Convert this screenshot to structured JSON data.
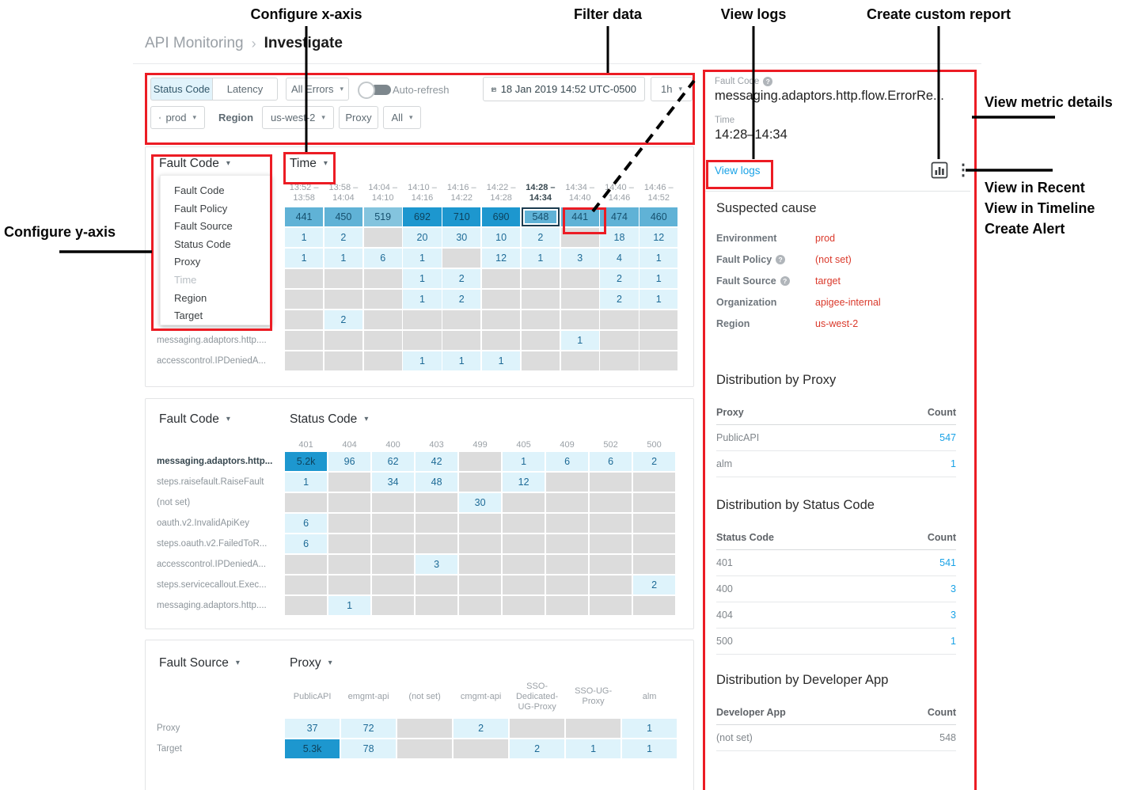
{
  "icons": {
    "chevron_down": "▾",
    "breadcrumb_separator": "›",
    "help": "?",
    "more_vertical": "⋮"
  },
  "annotations": {
    "configure_x_axis": "Configure x-axis",
    "filter_data": "Filter data",
    "view_logs": "View logs",
    "create_custom_report": "Create custom report",
    "view_metric_details": "View metric details",
    "view_in_recent": "View in Recent",
    "view_in_timeline": "View in Timeline",
    "create_alert": "Create Alert",
    "configure_y_axis": "Configure y-axis"
  },
  "breadcrumb": {
    "parent": "API Monitoring",
    "current": "Investigate"
  },
  "toolbar": {
    "tab_status_code": "Status Code",
    "tab_latency": "Latency",
    "errors_dropdown": "All Errors",
    "auto_refresh_label": "Auto-refresh",
    "datetime": "18 Jan 2019 14:52 UTC-0500",
    "interval": "1h",
    "env": "prod",
    "region_label": "Region",
    "region_value": "us-west-2",
    "proxy_label": "Proxy",
    "proxy_value": "All"
  },
  "charts": {
    "hm1": {
      "y_axis": "Fault Code",
      "x_axis": "Time",
      "menu": [
        {
          "label": "Fault Code"
        },
        {
          "label": "Fault Policy"
        },
        {
          "label": "Fault Source"
        },
        {
          "label": "Status Code"
        },
        {
          "label": "Proxy"
        },
        {
          "label": "Time",
          "disabled": true
        },
        {
          "label": "Region"
        },
        {
          "label": "Target"
        }
      ],
      "cols": [
        {
          "lines": [
            "13:52 –",
            "13:58"
          ]
        },
        {
          "lines": [
            "13:58 –",
            "14:04"
          ]
        },
        {
          "lines": [
            "14:04 –",
            "14:10"
          ]
        },
        {
          "lines": [
            "14:10 –",
            "14:16"
          ]
        },
        {
          "lines": [
            "14:16 –",
            "14:22"
          ]
        },
        {
          "lines": [
            "14:22 –",
            "14:28"
          ]
        },
        {
          "lines": [
            "14:28 –",
            "14:34"
          ],
          "bold": true
        },
        {
          "lines": [
            "14:34 –",
            "14:40"
          ]
        },
        {
          "lines": [
            "14:40 –",
            "14:46"
          ]
        },
        {
          "lines": [
            "14:46 –",
            "14:52"
          ]
        }
      ],
      "rows": [
        {
          "label": "",
          "cells": [
            [
              "441",
              "m"
            ],
            [
              "450",
              "m"
            ],
            [
              "519",
              "ml"
            ],
            [
              "692",
              "d"
            ],
            [
              "710",
              "d"
            ],
            [
              "690",
              "d"
            ],
            [
              "548",
              "m",
              "sel"
            ],
            [
              "441",
              "m"
            ],
            [
              "474",
              "m"
            ],
            [
              "460",
              "m"
            ]
          ]
        },
        {
          "label": "",
          "cells": [
            [
              "1",
              "l"
            ],
            [
              "2",
              "l"
            ],
            [],
            [
              "20",
              "l"
            ],
            [
              "30",
              "l"
            ],
            [
              "10",
              "l"
            ],
            [
              "2",
              "l"
            ],
            [],
            [
              "18",
              "l"
            ],
            [
              "12",
              "l"
            ]
          ]
        },
        {
          "label": "",
          "cells": [
            [
              "1",
              "l"
            ],
            [
              "1",
              "l"
            ],
            [
              "6",
              "l"
            ],
            [
              "1",
              "l"
            ],
            [],
            [
              "12",
              "l"
            ],
            [
              "1",
              "l"
            ],
            [
              "3",
              "l"
            ],
            [
              "4",
              "l"
            ],
            [
              "1",
              "l"
            ]
          ]
        },
        {
          "label": "",
          "cells": [
            [],
            [],
            [],
            [
              "1",
              "l"
            ],
            [
              "2",
              "l"
            ],
            [],
            [],
            [],
            [
              "2",
              "l"
            ],
            [
              "1",
              "l"
            ]
          ]
        },
        {
          "label": "",
          "cells": [
            [],
            [],
            [],
            [
              "1",
              "l"
            ],
            [
              "2",
              "l"
            ],
            [],
            [],
            [],
            [
              "2",
              "l"
            ],
            [
              "1",
              "l"
            ]
          ]
        },
        {
          "label": "",
          "cells": [
            [],
            [
              "2",
              "l"
            ],
            [],
            [],
            [],
            [],
            [],
            [],
            [],
            []
          ]
        },
        {
          "label": "messaging.adaptors.http....",
          "cells": [
            [],
            [],
            [],
            [],
            [],
            [],
            [],
            [
              "1",
              "l"
            ],
            [],
            []
          ]
        },
        {
          "label": "accesscontrol.IPDeniedA...",
          "cells": [
            [],
            [],
            [],
            [
              "1",
              "l"
            ],
            [
              "1",
              "l"
            ],
            [
              "1",
              "l"
            ],
            [],
            [],
            [],
            []
          ]
        }
      ]
    },
    "hm2": {
      "y_axis": "Fault Code",
      "x_axis": "Status Code",
      "cols": [
        {
          "lines": [
            "401"
          ]
        },
        {
          "lines": [
            "404"
          ]
        },
        {
          "lines": [
            "400"
          ]
        },
        {
          "lines": [
            "403"
          ]
        },
        {
          "lines": [
            "499"
          ]
        },
        {
          "lines": [
            "405"
          ]
        },
        {
          "lines": [
            "409"
          ]
        },
        {
          "lines": [
            "502"
          ]
        },
        {
          "lines": [
            "500"
          ]
        }
      ],
      "rows": [
        {
          "label": "messaging.adaptors.http...",
          "bold": true,
          "cells": [
            [
              "5.2k",
              "d"
            ],
            [
              "96",
              "l"
            ],
            [
              "62",
              "l"
            ],
            [
              "42",
              "l"
            ],
            [],
            [
              "1",
              "l"
            ],
            [
              "6",
              "l"
            ],
            [
              "6",
              "l"
            ],
            [
              "2",
              "l"
            ]
          ]
        },
        {
          "label": "steps.raisefault.RaiseFault",
          "cells": [
            [
              "1",
              "l"
            ],
            [],
            [
              "34",
              "l"
            ],
            [
              "48",
              "l"
            ],
            [],
            [
              "12",
              "l"
            ],
            [],
            [],
            []
          ]
        },
        {
          "label": "(not set)",
          "cells": [
            [],
            [],
            [],
            [],
            [
              "30",
              "l"
            ],
            [],
            [],
            [],
            []
          ]
        },
        {
          "label": "oauth.v2.InvalidApiKey",
          "cells": [
            [
              "6",
              "l"
            ],
            [],
            [],
            [],
            [],
            [],
            [],
            [],
            []
          ]
        },
        {
          "label": "steps.oauth.v2.FailedToR...",
          "cells": [
            [
              "6",
              "l"
            ],
            [],
            [],
            [],
            [],
            [],
            [],
            [],
            []
          ]
        },
        {
          "label": "accesscontrol.IPDeniedA...",
          "cells": [
            [],
            [],
            [],
            [
              "3",
              "l"
            ],
            [],
            [],
            [],
            [],
            []
          ]
        },
        {
          "label": "steps.servicecallout.Exec...",
          "cells": [
            [],
            [],
            [],
            [],
            [],
            [],
            [],
            [],
            [
              "2",
              "l"
            ]
          ]
        },
        {
          "label": "messaging.adaptors.http....",
          "cells": [
            [],
            [
              "1",
              "l"
            ],
            [],
            [],
            [],
            [],
            [],
            [],
            []
          ]
        }
      ]
    },
    "hm3": {
      "y_axis": "Fault Source",
      "x_axis": "Proxy",
      "cols": [
        {
          "lines": [
            "PublicAPI"
          ]
        },
        {
          "lines": [
            "emgmt-api"
          ]
        },
        {
          "lines": [
            "(not set)"
          ]
        },
        {
          "lines": [
            "cmgmt-api"
          ]
        },
        {
          "lines": [
            "SSO-",
            "Dedicated-",
            "UG-Proxy"
          ]
        },
        {
          "lines": [
            "SSO-UG-",
            "Proxy"
          ]
        },
        {
          "lines": [
            "alm"
          ]
        }
      ],
      "rows": [
        {
          "label": "Proxy",
          "cells": [
            [
              "37",
              "l"
            ],
            [
              "72",
              "l"
            ],
            [],
            [
              "2",
              "l"
            ],
            [],
            [],
            [
              "1",
              "l"
            ]
          ]
        },
        {
          "label": "Target",
          "cells": [
            [
              "5.3k",
              "d"
            ],
            [
              "78",
              "l"
            ],
            [],
            [],
            [
              "2",
              "l"
            ],
            [
              "1",
              "l"
            ],
            [
              "1",
              "l"
            ]
          ]
        }
      ]
    }
  },
  "panel": {
    "fault_code_label": "Fault Code",
    "fault_code_value": "messaging.adaptors.http.flow.ErrorRe...",
    "time_label": "Time",
    "time_value": "14:28–14:34",
    "view_logs": "View logs",
    "suspected_cause": {
      "title": "Suspected cause",
      "rows": [
        {
          "label": "Environment",
          "value": "prod",
          "help": false
        },
        {
          "label": "Fault Policy",
          "value": "(not set)",
          "help": true
        },
        {
          "label": "Fault Source",
          "value": "target",
          "help": true
        },
        {
          "label": "Organization",
          "value": "apigee-internal",
          "help": false
        },
        {
          "label": "Region",
          "value": "us-west-2",
          "help": false
        }
      ]
    },
    "distributions": [
      {
        "title": "Distribution by Proxy",
        "col1": "Proxy",
        "col2": "Count",
        "rows": [
          {
            "name": "PublicAPI",
            "count": "547",
            "link": true
          },
          {
            "name": "alm",
            "count": "1",
            "link": true
          }
        ]
      },
      {
        "title": "Distribution by Status Code",
        "col1": "Status Code",
        "col2": "Count",
        "rows": [
          {
            "name": "401",
            "count": "541",
            "link": true
          },
          {
            "name": "400",
            "count": "3",
            "link": true
          },
          {
            "name": "404",
            "count": "3",
            "link": true
          },
          {
            "name": "500",
            "count": "1",
            "link": true
          }
        ]
      },
      {
        "title": "Distribution by Developer App",
        "col1": "Developer App",
        "col2": "Count",
        "rows": [
          {
            "name": "(not set)",
            "count": "548",
            "link": false
          }
        ]
      }
    ]
  }
}
